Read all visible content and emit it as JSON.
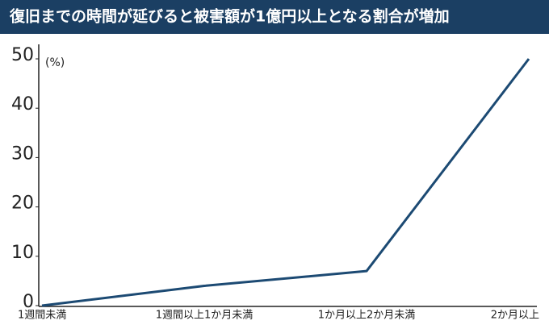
{
  "chart_data": {
    "type": "line",
    "title": "復旧までの時間が延びると被害額が1億円以上となる割合が増加",
    "y_label": "(%)",
    "categories": [
      "1週間未満",
      "1週間以上1か月未満",
      "1か月以上2か月未満",
      "2か月以上"
    ],
    "values": [
      0,
      4,
      7,
      50
    ],
    "color": "#1c4a73",
    "ylim": [
      0,
      50
    ],
    "yticks": [
      0,
      10,
      20,
      30,
      40,
      50
    ],
    "grid": false
  }
}
